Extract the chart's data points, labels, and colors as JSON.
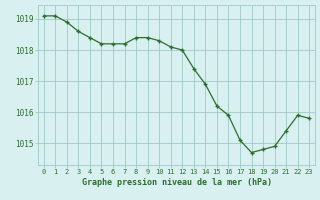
{
  "x": [
    0,
    1,
    2,
    3,
    4,
    5,
    6,
    7,
    8,
    9,
    10,
    11,
    12,
    13,
    14,
    15,
    16,
    17,
    18,
    19,
    20,
    21,
    22,
    23
  ],
  "y": [
    1019.1,
    1019.1,
    1018.9,
    1018.6,
    1018.4,
    1018.2,
    1018.2,
    1018.2,
    1018.4,
    1018.4,
    1018.3,
    1018.1,
    1018.0,
    1017.4,
    1016.9,
    1016.2,
    1015.9,
    1015.1,
    1014.7,
    1014.8,
    1014.9,
    1015.4,
    1015.9,
    1015.8
  ],
  "line_color": "#2d6e2d",
  "marker_color": "#2d6e2d",
  "bg_color": "#d8f0f0",
  "grid_color": "#a0c8c8",
  "axis_label_color": "#2d6e2d",
  "tick_label_color": "#2d6e2d",
  "xlabel": "Graphe pression niveau de la mer (hPa)",
  "ylim_min": 1014.3,
  "ylim_max": 1019.45,
  "yticks": [
    1015,
    1016,
    1017,
    1018,
    1019
  ],
  "xlim_min": -0.5,
  "xlim_max": 23.5
}
